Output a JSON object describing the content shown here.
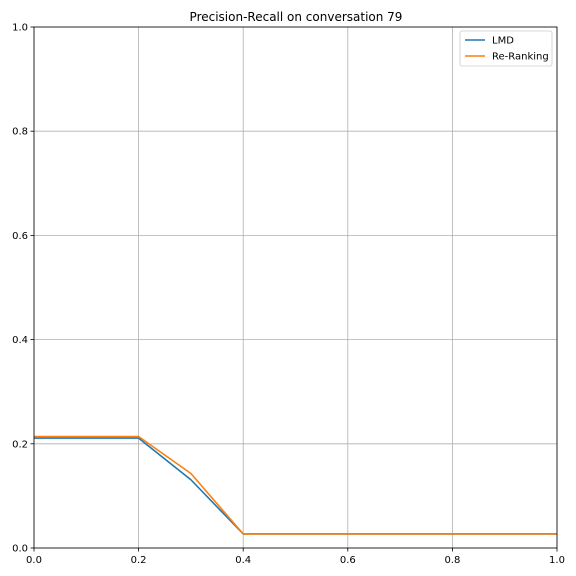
{
  "chart_data": {
    "type": "line",
    "title": "Precision-Recall on conversation 79",
    "xlabel": "",
    "ylabel": "",
    "xlim": [
      0,
      1
    ],
    "ylim": [
      0,
      1
    ],
    "xticks": [
      0.0,
      0.2,
      0.4,
      0.6,
      0.8,
      1.0
    ],
    "yticks": [
      0.0,
      0.2,
      0.4,
      0.6,
      0.8,
      1.0
    ],
    "xtick_labels": [
      "0.0",
      "0.2",
      "0.4",
      "0.6",
      "0.8",
      "1.0"
    ],
    "ytick_labels": [
      "0.0",
      "0.2",
      "0.4",
      "0.6",
      "0.8",
      "1.0"
    ],
    "grid": true,
    "legend_position": "top-right",
    "series": [
      {
        "name": "LMD",
        "color": "#1f77b4",
        "x": [
          0.0,
          0.1,
          0.2,
          0.3,
          0.4,
          0.5,
          0.6,
          0.7,
          0.8,
          0.9,
          1.0
        ],
        "y": [
          0.211,
          0.211,
          0.211,
          0.131,
          0.027,
          0.027,
          0.027,
          0.027,
          0.027,
          0.027,
          0.027
        ]
      },
      {
        "name": "Re-Ranking",
        "color": "#ff7f0e",
        "x": [
          0.0,
          0.1,
          0.2,
          0.3,
          0.4,
          0.5,
          0.6,
          0.7,
          0.8,
          0.9,
          1.0
        ],
        "y": [
          0.214,
          0.214,
          0.214,
          0.143,
          0.027,
          0.027,
          0.027,
          0.027,
          0.027,
          0.027,
          0.027
        ]
      }
    ]
  }
}
